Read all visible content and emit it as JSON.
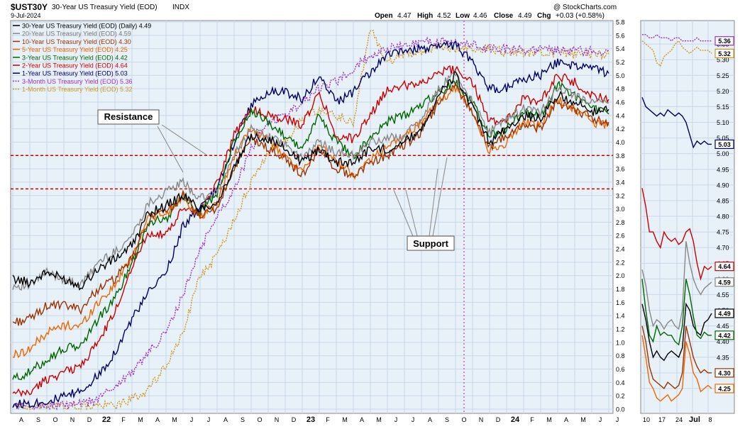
{
  "header": {
    "symbol": "$UST30Y",
    "name": "30-Year US Treasury Yield (EOD)",
    "exchange": "INDX",
    "date": "9-Jul-2024",
    "watermark": "@ StockCharts.com",
    "ohlc": {
      "open_label": "Open",
      "open": "4.47",
      "high_label": "High",
      "high": "4.52",
      "low_label": "Low",
      "low": "4.46",
      "close_label": "Close",
      "close": "4.49",
      "chg_label": "Chg",
      "chg": "+0.03 (+0.58%)"
    }
  },
  "annotations": {
    "resistance": "Resistance",
    "support": "Support",
    "resistance_level": 3.8,
    "support_level": 3.3
  },
  "colors": {
    "plot_bg": "#e8f0f8",
    "grid": "#c8d8e8",
    "hline": "#cc0000",
    "vline": "#cc33cc"
  },
  "chart_data": {
    "type": "line",
    "ylim": [
      0,
      5.8
    ],
    "yticks": [
      "5.8",
      "5.6",
      "5.4",
      "5.2",
      "5.0",
      "4.8",
      "4.6",
      "4.4",
      "4.2",
      "4.0",
      "3.8",
      "3.6",
      "3.4",
      "3.2",
      "3.0",
      "2.8",
      "2.6",
      "2.4",
      "2.2",
      "2.0",
      "1.8",
      "1.6",
      "1.4",
      "1.2",
      "1.0",
      "0.8",
      "0.6",
      "0.4",
      "0.2",
      "0.0"
    ],
    "xticks": [
      "A",
      "S",
      "O",
      "N",
      "D",
      "22",
      "F",
      "M",
      "A",
      "M",
      "J",
      "J",
      "A",
      "S",
      "O",
      "N",
      "D",
      "23",
      "F",
      "M",
      "A",
      "M",
      "J",
      "J",
      "A",
      "S",
      "O",
      "N",
      "D",
      "24",
      "F",
      "M",
      "A",
      "M",
      "J",
      "J"
    ],
    "x_months": [
      "2021-08",
      "2021-09",
      "2021-10",
      "2021-11",
      "2021-12",
      "2022-01",
      "2022-02",
      "2022-03",
      "2022-04",
      "2022-05",
      "2022-06",
      "2022-07",
      "2022-08",
      "2022-09",
      "2022-10",
      "2022-11",
      "2022-12",
      "2023-01",
      "2023-02",
      "2023-03",
      "2023-04",
      "2023-05",
      "2023-06",
      "2023-07",
      "2023-08",
      "2023-09",
      "2023-10",
      "2023-11",
      "2023-12",
      "2024-01",
      "2024-02",
      "2024-03",
      "2024-04",
      "2024-05",
      "2024-06",
      "2024-07"
    ],
    "series": [
      {
        "name": "30-Year US Treasury Yield (EOD) (Daily) 4.49",
        "color": "#000000",
        "dash": false,
        "values": [
          1.95,
          1.9,
          2.05,
          1.95,
          1.85,
          2.1,
          2.25,
          2.45,
          2.95,
          3.05,
          3.2,
          3.0,
          3.1,
          3.6,
          4.1,
          4.05,
          3.9,
          3.7,
          3.9,
          3.7,
          3.7,
          3.9,
          3.9,
          4.0,
          4.2,
          4.7,
          5.0,
          4.5,
          4.0,
          4.2,
          4.4,
          4.35,
          4.7,
          4.6,
          4.45,
          4.49
        ]
      },
      {
        "name": "20-Year US Treasury Yield (EOD) 4.59",
        "color": "#888888",
        "dash": false,
        "values": [
          1.85,
          1.85,
          2.05,
          1.95,
          1.85,
          2.2,
          2.35,
          2.6,
          3.1,
          3.25,
          3.4,
          3.15,
          3.25,
          3.8,
          4.2,
          4.1,
          3.95,
          3.75,
          4.0,
          3.85,
          3.8,
          4.0,
          4.05,
          4.1,
          4.35,
          4.8,
          5.05,
          4.6,
          4.15,
          4.35,
          4.5,
          4.45,
          4.8,
          4.7,
          4.6,
          4.59
        ]
      },
      {
        "name": "10-Year US Treasury Yield (EOD) 4.30",
        "color": "#993300",
        "dash": false,
        "values": [
          1.3,
          1.35,
          1.55,
          1.55,
          1.5,
          1.8,
          1.95,
          2.25,
          2.85,
          2.95,
          3.2,
          2.9,
          3.0,
          3.6,
          4.05,
          3.9,
          3.75,
          3.5,
          3.9,
          3.6,
          3.5,
          3.7,
          3.8,
          3.95,
          4.15,
          4.6,
          4.85,
          4.45,
          3.9,
          4.1,
          4.25,
          4.2,
          4.6,
          4.5,
          4.35,
          4.3
        ]
      },
      {
        "name": "5-Year US Treasury Yield (EOD) 4.25",
        "color": "#ee6600",
        "dash": false,
        "values": [
          0.8,
          0.9,
          1.15,
          1.25,
          1.25,
          1.6,
          1.85,
          2.3,
          2.9,
          2.9,
          3.2,
          2.85,
          3.1,
          3.8,
          4.2,
          4.05,
          3.75,
          3.55,
          4.0,
          3.7,
          3.5,
          3.75,
          3.95,
          4.1,
          4.3,
          4.6,
          4.8,
          4.45,
          3.85,
          4.0,
          4.3,
          4.25,
          4.65,
          4.5,
          4.3,
          4.25
        ]
      },
      {
        "name": "3-Year US Treasury Yield (EOD) 4.42",
        "color": "#006600",
        "dash": false,
        "values": [
          0.45,
          0.55,
          0.75,
          0.9,
          0.95,
          1.35,
          1.65,
          2.2,
          2.8,
          2.85,
          3.2,
          2.95,
          3.25,
          4.0,
          4.45,
          4.3,
          4.1,
          3.9,
          4.4,
          4.0,
          3.8,
          4.05,
          4.3,
          4.4,
          4.55,
          4.75,
          4.9,
          4.6,
          4.1,
          4.2,
          4.45,
          4.4,
          4.85,
          4.7,
          4.5,
          4.42
        ]
      },
      {
        "name": "2-Year US Treasury Yield (EOD) 4.64",
        "color": "#cc0000",
        "dash": false,
        "values": [
          0.22,
          0.25,
          0.45,
          0.55,
          0.65,
          1.0,
          1.45,
          2.15,
          2.65,
          2.6,
          3.0,
          2.95,
          3.4,
          4.1,
          4.5,
          4.4,
          4.35,
          4.25,
          4.75,
          4.1,
          4.05,
          4.4,
          4.8,
          4.85,
          4.9,
          5.05,
          5.1,
          4.9,
          4.3,
          4.35,
          4.65,
          4.6,
          5.0,
          4.9,
          4.7,
          4.64
        ]
      },
      {
        "name": "1-Year US Treasury Yield (EOD) 5.03",
        "color": "#000066",
        "dash": false,
        "values": [
          0.07,
          0.09,
          0.12,
          0.18,
          0.27,
          0.5,
          0.85,
          1.35,
          1.75,
          2.05,
          2.75,
          3.0,
          3.3,
          4.0,
          4.55,
          4.75,
          4.75,
          4.65,
          5.0,
          4.6,
          4.75,
          5.05,
          5.3,
          5.35,
          5.4,
          5.45,
          5.45,
          5.2,
          4.8,
          4.8,
          4.95,
          5.0,
          5.2,
          5.15,
          5.1,
          5.03
        ]
      },
      {
        "name": "3-Month US Treasury Yield (EOD) 5.36",
        "color": "#9933cc",
        "dash": true,
        "values": [
          0.05,
          0.05,
          0.06,
          0.06,
          0.07,
          0.15,
          0.35,
          0.55,
          0.85,
          1.15,
          1.7,
          2.4,
          2.9,
          3.3,
          3.9,
          4.3,
          4.4,
          4.6,
          4.8,
          4.9,
          5.1,
          5.3,
          5.4,
          5.45,
          5.5,
          5.5,
          5.5,
          5.45,
          5.4,
          5.4,
          5.38,
          5.38,
          5.38,
          5.37,
          5.36,
          5.36
        ]
      },
      {
        "name": "1-Month US Treasury Yield (EOD) 5.32",
        "color": "#cc9922",
        "dash": true,
        "values": [
          0.04,
          0.04,
          0.04,
          0.04,
          0.04,
          0.05,
          0.05,
          0.15,
          0.3,
          0.65,
          1.15,
          2.0,
          2.3,
          2.85,
          3.4,
          3.85,
          4.0,
          4.35,
          4.5,
          4.4,
          4.3,
          5.7,
          5.2,
          5.3,
          5.35,
          5.4,
          5.4,
          5.4,
          5.4,
          5.35,
          5.35,
          5.35,
          5.35,
          5.32,
          5.32,
          5.32
        ]
      }
    ],
    "zoom_panel": {
      "ylim": [
        4.2,
        5.4
      ],
      "yticks": [
        "5.35",
        "5.30",
        "5.25",
        "5.20",
        "5.15",
        "5.10",
        "5.05",
        "5.00",
        "4.95",
        "4.90",
        "4.85",
        "4.80",
        "4.75",
        "4.70",
        "4.65",
        "4.60",
        "4.55",
        "4.50",
        "4.45",
        "4.40",
        "4.35",
        "4.30",
        "4.25"
      ],
      "xticks": [
        "10",
        "17",
        "24",
        "Jul",
        "8"
      ],
      "price_labels": [
        {
          "value": 5.36,
          "text": "5.36",
          "color": "#9933cc"
        },
        {
          "value": 5.32,
          "text": "5.32",
          "color": "#cc9922"
        },
        {
          "value": 5.03,
          "text": "5.03",
          "color": "#000066"
        },
        {
          "value": 4.64,
          "text": "4.64",
          "color": "#cc0000"
        },
        {
          "value": 4.59,
          "text": "4.59",
          "color": "#888888"
        },
        {
          "value": 4.49,
          "text": "4.49",
          "color": "#000000"
        },
        {
          "value": 4.42,
          "text": "4.42",
          "color": "#006600"
        },
        {
          "value": 4.3,
          "text": "4.30",
          "color": "#993300"
        },
        {
          "value": 4.25,
          "text": "4.25",
          "color": "#ee6600"
        }
      ],
      "series": [
        {
          "color": "#9933cc",
          "dash": true,
          "values": [
            5.38,
            5.38,
            5.37,
            5.37,
            5.38,
            5.37,
            5.37,
            5.37,
            5.36,
            5.37,
            5.37,
            5.36,
            5.36,
            5.36,
            5.36,
            5.37,
            5.36,
            5.36,
            5.36,
            5.36
          ]
        },
        {
          "color": "#cc9922",
          "dash": true,
          "values": [
            5.36,
            5.35,
            5.34,
            5.33,
            5.29,
            5.28,
            5.31,
            5.32,
            5.33,
            5.35,
            5.36,
            5.34,
            5.33,
            5.32,
            5.33,
            5.34,
            5.33,
            5.33,
            5.33,
            5.32
          ]
        },
        {
          "color": "#000066",
          "dash": false,
          "values": [
            5.18,
            5.15,
            5.14,
            5.13,
            5.12,
            5.13,
            5.12,
            5.14,
            5.13,
            5.12,
            5.13,
            5.12,
            5.1,
            5.06,
            5.02,
            5.04,
            5.03,
            5.04,
            5.03,
            5.03
          ]
        },
        {
          "color": "#cc0000",
          "dash": false,
          "values": [
            4.89,
            4.83,
            4.75,
            4.75,
            4.72,
            4.7,
            4.75,
            4.73,
            4.72,
            4.73,
            4.71,
            4.72,
            4.75,
            4.76,
            4.72,
            4.65,
            4.6,
            4.64,
            4.63,
            4.64
          ]
        },
        {
          "color": "#888888",
          "dash": false,
          "values": [
            4.63,
            4.58,
            4.5,
            4.45,
            4.47,
            4.46,
            4.44,
            4.46,
            4.47,
            4.45,
            4.44,
            4.5,
            4.72,
            4.65,
            4.6,
            4.57,
            4.55,
            4.57,
            4.58,
            4.59
          ]
        },
        {
          "color": "#000000",
          "dash": false,
          "values": [
            4.52,
            4.47,
            4.4,
            4.35,
            4.37,
            4.35,
            4.34,
            4.36,
            4.37,
            4.36,
            4.35,
            4.38,
            4.52,
            4.5,
            4.45,
            4.43,
            4.42,
            4.46,
            4.47,
            4.49
          ]
        },
        {
          "color": "#006600",
          "dash": false,
          "values": [
            4.6,
            4.5,
            4.42,
            4.4,
            4.45,
            4.42,
            4.43,
            4.42,
            4.42,
            4.4,
            4.39,
            4.45,
            4.6,
            4.55,
            4.48,
            4.42,
            4.41,
            4.43,
            4.42,
            4.42
          ]
        },
        {
          "color": "#993300",
          "dash": false,
          "values": [
            4.45,
            4.4,
            4.32,
            4.28,
            4.27,
            4.26,
            4.25,
            4.27,
            4.26,
            4.25,
            4.26,
            4.3,
            4.45,
            4.4,
            4.35,
            4.32,
            4.3,
            4.31,
            4.3,
            4.3
          ]
        },
        {
          "color": "#ee6600",
          "dash": false,
          "values": [
            4.42,
            4.35,
            4.27,
            4.25,
            4.22,
            4.21,
            4.22,
            4.23,
            4.21,
            4.22,
            4.23,
            4.25,
            4.4,
            4.36,
            4.3,
            4.28,
            4.24,
            4.25,
            4.26,
            4.25
          ]
        }
      ]
    }
  }
}
